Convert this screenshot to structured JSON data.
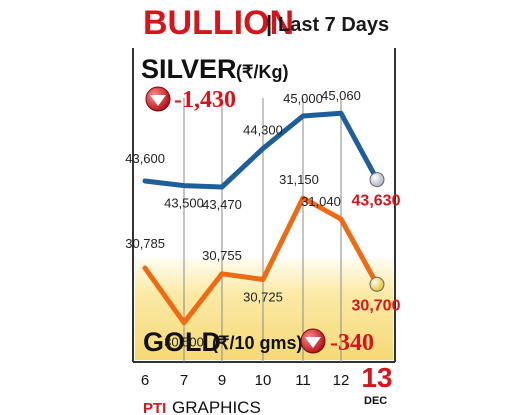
{
  "header": {
    "title": "BULLION",
    "separator": "|",
    "subtitle": "Last 7 Days"
  },
  "silver_panel": {
    "label": "SILVER",
    "unit": "(₹/Kg)",
    "change": "-1,430",
    "change_icon": "down-arrow-icon"
  },
  "gold_panel": {
    "label": "GOLD",
    "unit": "(₹/10 gms)",
    "change": "-340",
    "change_icon": "down-arrow-icon"
  },
  "month": "DEC",
  "credit": {
    "logo": "PTI",
    "text": "GRAPHICS"
  },
  "colors": {
    "silver_line": "#1f5f99",
    "gold_line": "#ee6a14",
    "accent": "#d7141a",
    "gold_fill": "#fbe9a2",
    "silver_marker": "#c8ccd8",
    "gold_marker": "#f3d76a",
    "grid": "#8a8a8a",
    "frame": "#333333"
  },
  "chart_data": {
    "type": "line",
    "title": "BULLION | Last 7 Days",
    "x": [
      6,
      7,
      9,
      10,
      11,
      12,
      13
    ],
    "x_labels": [
      "6",
      "7",
      "9",
      "10",
      "11",
      "12",
      "13"
    ],
    "series": [
      {
        "name": "SILVER",
        "unit": "(₹/Kg)",
        "values": [
          43600,
          43500,
          43470,
          44300,
          45000,
          45060,
          43630
        ],
        "labels": [
          "43,600",
          "43,500",
          "43,470",
          "44,300",
          "45,000",
          "45,060",
          "43,630"
        ],
        "change": "-1,430"
      },
      {
        "name": "GOLD",
        "unit": "(₹/10 gms)",
        "values": [
          30785,
          30500,
          30755,
          30725,
          31150,
          31040,
          30700
        ],
        "labels": [
          "30,785",
          "30,500",
          "30,755",
          "30,725",
          "31,150",
          "31,040",
          "30,700"
        ],
        "change": "-340"
      }
    ],
    "grid": true,
    "legend": "none"
  }
}
